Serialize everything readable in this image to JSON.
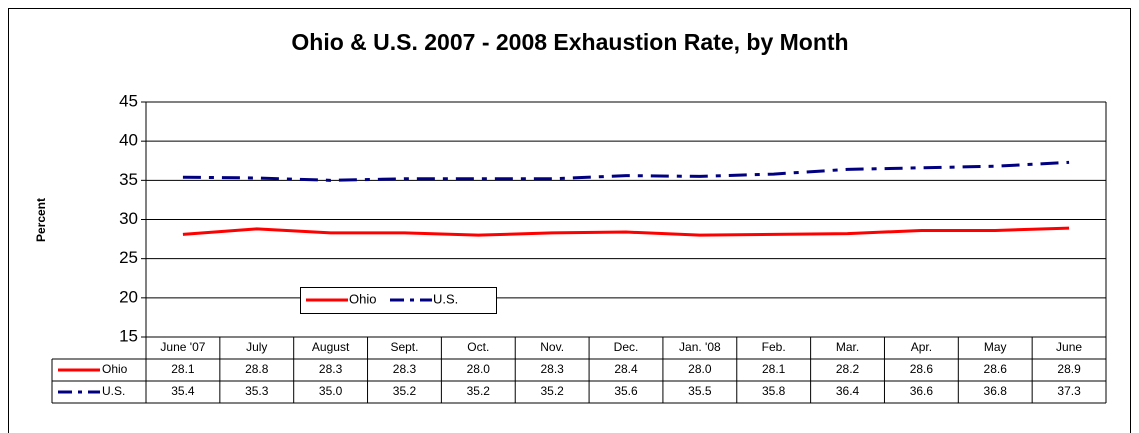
{
  "chart_data": {
    "type": "line",
    "title": "Ohio & U.S. 2007 - 2008 Exhaustion Rate, by Month",
    "y_label": "Percent",
    "categories": [
      "June '07",
      "July",
      "August",
      "Sept.",
      "Oct.",
      "Nov.",
      "Dec.",
      "Jan. '08",
      "Feb.",
      "Mar.",
      "Apr.",
      "May",
      "June"
    ],
    "series": [
      {
        "name": "Ohio",
        "color": "#ff0000",
        "dash": false,
        "values": [
          28.1,
          28.8,
          28.3,
          28.3,
          28.0,
          28.3,
          28.4,
          28.0,
          28.1,
          28.2,
          28.6,
          28.6,
          28.9
        ],
        "value_labels": [
          "28.1",
          "28.8",
          "28.3",
          "28.3",
          "28.0",
          "28.3",
          "28.4",
          "28.0",
          "28.1",
          "28.2",
          "28.6",
          "28.6",
          "28.9"
        ]
      },
      {
        "name": "U.S.",
        "color": "#000080",
        "dash": true,
        "values": [
          35.4,
          35.3,
          35.0,
          35.2,
          35.2,
          35.2,
          35.6,
          35.5,
          35.8,
          36.4,
          36.6,
          36.8,
          37.3
        ],
        "value_labels": [
          "35.4",
          "35.3",
          "35.0",
          "35.2",
          "35.2",
          "35.2",
          "35.6",
          "35.5",
          "35.8",
          "36.4",
          "36.6",
          "36.8",
          "37.3"
        ]
      }
    ],
    "ylim": [
      15,
      45
    ],
    "yticks": [
      15,
      20,
      25,
      30,
      35,
      40,
      45
    ],
    "grid": true
  }
}
